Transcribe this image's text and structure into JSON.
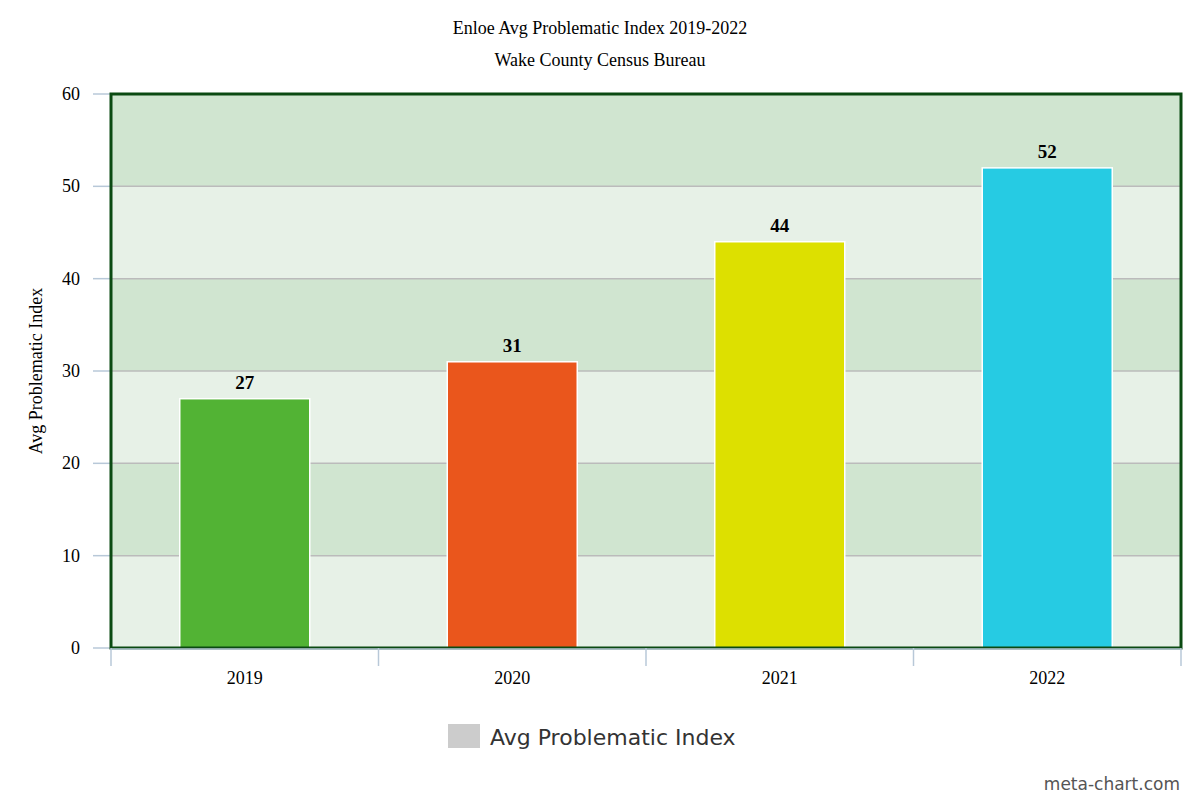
{
  "chart_data": {
    "type": "bar",
    "title": "Enloe Avg Problematic Index 2019-2022",
    "subtitle": "Wake County Census Bureau",
    "y_label": "Avg Problematic Index",
    "categories": [
      "2019",
      "2020",
      "2021",
      "2022"
    ],
    "series": [
      {
        "name": "Avg Problematic Index",
        "color": "#cccccc",
        "colors": [
          "#52b334",
          "#ea561c",
          "#dde000",
          "#26cbe3"
        ],
        "values": [
          27,
          31,
          44,
          52
        ]
      }
    ],
    "ylim": [
      0,
      60
    ],
    "yticks": [
      0,
      10,
      20,
      30,
      40,
      50,
      60
    ],
    "grid": true,
    "data_labels": true,
    "legend": "bottom",
    "annotations": [
      "meta-chart.com"
    ]
  }
}
